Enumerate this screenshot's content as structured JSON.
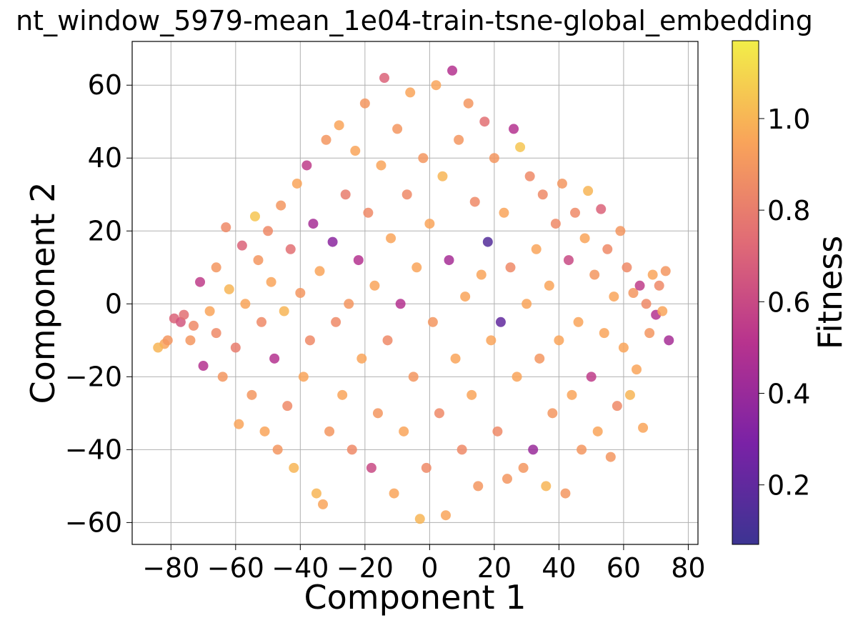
{
  "chart_data": {
    "type": "scatter",
    "title": "nt_window_5979-mean_1e04-train-tsne-global_embedding",
    "xlabel": "Component 1",
    "ylabel": "Component 2",
    "xlim": [
      -92,
      83
    ],
    "ylim": [
      -66,
      72
    ],
    "xticks": [
      -80,
      -60,
      -40,
      -20,
      0,
      20,
      40,
      60,
      80
    ],
    "yticks": [
      -60,
      -40,
      -20,
      0,
      20,
      40,
      60
    ],
    "xtick_labels": [
      "−80",
      "−60",
      "−40",
      "−20",
      "0",
      "20",
      "40",
      "60",
      "80"
    ],
    "ytick_labels": [
      "−60",
      "−40",
      "−20",
      "0",
      "20",
      "40",
      "60"
    ],
    "grid": true,
    "colorbar": {
      "label": "Fitness",
      "colormap": "plasma",
      "range": [
        0.07,
        1.17
      ],
      "ticks": [
        0.2,
        0.4,
        0.6,
        0.8,
        1.0
      ],
      "tick_labels": [
        "0.2",
        "0.4",
        "0.6",
        "0.8",
        "1.0"
      ]
    },
    "series": [
      {
        "values_note": "",
        "points": [
          [
            -82,
            -11,
            0.95
          ],
          [
            -84,
            -12,
            1.0
          ],
          [
            -81,
            -10,
            0.9
          ],
          [
            -79,
            -4,
            0.7
          ],
          [
            -77,
            -5,
            0.65
          ],
          [
            -76,
            -3,
            0.75
          ],
          [
            -74,
            -10,
            0.9
          ],
          [
            -73,
            -6,
            0.85
          ],
          [
            -71,
            6,
            0.55
          ],
          [
            -70,
            -17,
            0.5
          ],
          [
            -68,
            -2,
            0.95
          ],
          [
            -66,
            10,
            0.9
          ],
          [
            -66,
            -8,
            0.85
          ],
          [
            -64,
            -20,
            0.9
          ],
          [
            -63,
            21,
            0.85
          ],
          [
            -62,
            4,
            1.0
          ],
          [
            -60,
            -12,
            0.8
          ],
          [
            -59,
            -33,
            0.95
          ],
          [
            -58,
            16,
            0.7
          ],
          [
            -57,
            0,
            0.95
          ],
          [
            -55,
            -25,
            0.9
          ],
          [
            -54,
            24,
            1.05
          ],
          [
            -53,
            12,
            0.9
          ],
          [
            -52,
            -5,
            0.85
          ],
          [
            -51,
            -35,
            0.95
          ],
          [
            -50,
            20,
            0.85
          ],
          [
            -49,
            6,
            0.95
          ],
          [
            -48,
            -15,
            0.5
          ],
          [
            -47,
            -40,
            0.9
          ],
          [
            -46,
            27,
            0.9
          ],
          [
            -45,
            -2,
            1.0
          ],
          [
            -44,
            -28,
            0.85
          ],
          [
            -43,
            15,
            0.75
          ],
          [
            -42,
            -45,
            1.0
          ],
          [
            -41,
            33,
            0.95
          ],
          [
            -40,
            3,
            0.9
          ],
          [
            -39,
            -20,
            0.95
          ],
          [
            -38,
            38,
            0.55
          ],
          [
            -37,
            -10,
            0.85
          ],
          [
            -36,
            22,
            0.45
          ],
          [
            -35,
            -52,
            1.0
          ],
          [
            -34,
            9,
            0.95
          ],
          [
            -33,
            -55,
            0.95
          ],
          [
            -32,
            45,
            0.9
          ],
          [
            -31,
            -35,
            0.9
          ],
          [
            -30,
            17,
            0.35
          ],
          [
            -29,
            -5,
            0.85
          ],
          [
            -28,
            49,
            0.95
          ],
          [
            -27,
            -25,
            0.95
          ],
          [
            -26,
            30,
            0.8
          ],
          [
            -25,
            0,
            0.9
          ],
          [
            -24,
            -40,
            0.85
          ],
          [
            -23,
            42,
            0.95
          ],
          [
            -22,
            12,
            0.5
          ],
          [
            -21,
            -15,
            0.95
          ],
          [
            -20,
            55,
            0.9
          ],
          [
            -19,
            25,
            0.85
          ],
          [
            -18,
            -45,
            0.6
          ],
          [
            -17,
            5,
            0.95
          ],
          [
            -16,
            -30,
            0.9
          ],
          [
            -15,
            38,
            0.95
          ],
          [
            -14,
            62,
            0.7
          ],
          [
            -13,
            -10,
            0.85
          ],
          [
            -12,
            18,
            0.95
          ],
          [
            -11,
            -52,
            0.95
          ],
          [
            -10,
            48,
            0.9
          ],
          [
            -9,
            0,
            0.5
          ],
          [
            -8,
            -35,
            0.95
          ],
          [
            -7,
            30,
            0.85
          ],
          [
            -6,
            58,
            0.95
          ],
          [
            -5,
            -20,
            0.9
          ],
          [
            -4,
            10,
            0.95
          ],
          [
            -3,
            -59,
            1.0
          ],
          [
            -2,
            40,
            0.9
          ],
          [
            -1,
            -45,
            0.85
          ],
          [
            0,
            22,
            0.95
          ],
          [
            1,
            -5,
            0.9
          ],
          [
            2,
            60,
            0.95
          ],
          [
            3,
            -30,
            0.85
          ],
          [
            4,
            35,
            1.0
          ],
          [
            5,
            -58,
            0.95
          ],
          [
            6,
            12,
            0.45
          ],
          [
            7,
            64,
            0.5
          ],
          [
            8,
            -15,
            0.95
          ],
          [
            9,
            45,
            0.9
          ],
          [
            10,
            -40,
            0.85
          ],
          [
            11,
            2,
            0.95
          ],
          [
            12,
            55,
            0.9
          ],
          [
            13,
            -25,
            0.95
          ],
          [
            14,
            28,
            0.85
          ],
          [
            15,
            -50,
            0.9
          ],
          [
            16,
            8,
            0.95
          ],
          [
            17,
            50,
            0.75
          ],
          [
            18,
            17,
            0.15
          ],
          [
            19,
            -10,
            0.95
          ],
          [
            20,
            40,
            0.9
          ],
          [
            21,
            -35,
            0.85
          ],
          [
            22,
            -5,
            0.2
          ],
          [
            23,
            25,
            0.95
          ],
          [
            24,
            -48,
            0.9
          ],
          [
            25,
            10,
            0.85
          ],
          [
            26,
            48,
            0.5
          ],
          [
            27,
            -20,
            0.95
          ],
          [
            28,
            43,
            1.05
          ],
          [
            29,
            -45,
            0.9
          ],
          [
            30,
            0,
            0.95
          ],
          [
            31,
            35,
            0.85
          ],
          [
            32,
            -40,
            0.4
          ],
          [
            33,
            15,
            0.95
          ],
          [
            34,
            -15,
            0.9
          ],
          [
            35,
            30,
            0.85
          ],
          [
            36,
            -50,
            1.0
          ],
          [
            37,
            5,
            0.95
          ],
          [
            38,
            -30,
            0.9
          ],
          [
            39,
            22,
            0.85
          ],
          [
            40,
            -10,
            0.95
          ],
          [
            41,
            33,
            0.9
          ],
          [
            42,
            -52,
            0.9
          ],
          [
            43,
            12,
            0.6
          ],
          [
            44,
            -25,
            0.95
          ],
          [
            45,
            25,
            0.85
          ],
          [
            46,
            -5,
            0.95
          ],
          [
            47,
            -40,
            0.9
          ],
          [
            48,
            18,
            0.95
          ],
          [
            49,
            31,
            1.0
          ],
          [
            50,
            -20,
            0.55
          ],
          [
            51,
            8,
            0.9
          ],
          [
            52,
            -35,
            0.95
          ],
          [
            53,
            26,
            0.7
          ],
          [
            54,
            -8,
            0.95
          ],
          [
            55,
            15,
            0.85
          ],
          [
            56,
            -42,
            0.9
          ],
          [
            57,
            2,
            0.95
          ],
          [
            58,
            -28,
            0.85
          ],
          [
            59,
            20,
            0.9
          ],
          [
            60,
            -12,
            0.95
          ],
          [
            61,
            10,
            0.85
          ],
          [
            62,
            -25,
            1.0
          ],
          [
            63,
            3,
            0.9
          ],
          [
            64,
            -18,
            0.95
          ],
          [
            65,
            5,
            0.55
          ],
          [
            66,
            -34,
            0.95
          ],
          [
            67,
            0,
            0.85
          ],
          [
            68,
            -8,
            0.9
          ],
          [
            69,
            8,
            0.95
          ],
          [
            70,
            -3,
            0.5
          ],
          [
            71,
            5,
            0.85
          ],
          [
            72,
            -2,
            0.95
          ],
          [
            73,
            9,
            0.9
          ],
          [
            74,
            -10,
            0.45
          ]
        ]
      }
    ]
  }
}
